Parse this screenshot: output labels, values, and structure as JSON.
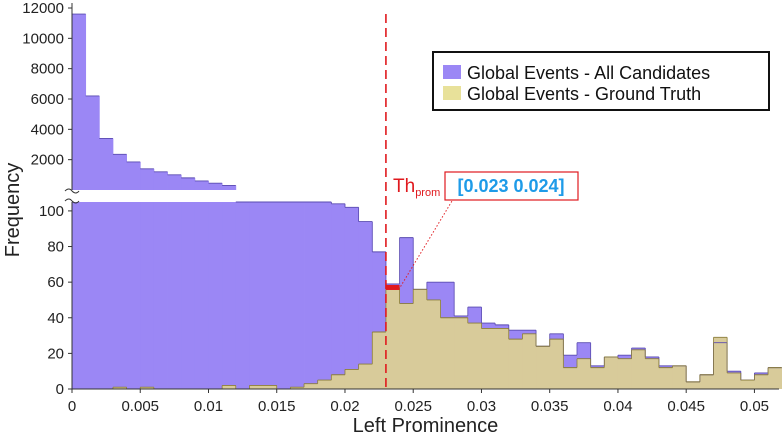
{
  "chart_data": {
    "type": "bar",
    "xlabel": "Left Prominence",
    "ylabel": "Frequency",
    "xlim": [
      0,
      0.0518
    ],
    "bin_width": 0.001,
    "axis_break": true,
    "ylim_lower": [
      0,
      105
    ],
    "ylim_upper": [
      0,
      12000
    ],
    "x_ticks": [
      "0",
      "0.005",
      "0.01",
      "0.015",
      "0.02",
      "0.025",
      "0.03",
      "0.035",
      "0.04",
      "0.045",
      "0.05"
    ],
    "x_tick_values": [
      0,
      0.005,
      0.01,
      0.015,
      0.02,
      0.025,
      0.03,
      0.035,
      0.04,
      0.045,
      0.05
    ],
    "y_ticks_lower": [
      "0",
      "20",
      "40",
      "60",
      "80",
      "100"
    ],
    "y_tick_values_lower": [
      0,
      20,
      40,
      60,
      80,
      100
    ],
    "y_ticks_upper": [
      "2000",
      "4000",
      "6000",
      "8000",
      "10000",
      "12000"
    ],
    "y_tick_values_upper": [
      2000,
      4000,
      6000,
      8000,
      10000,
      12000
    ],
    "series": [
      {
        "name": "Global Events - All Candidates",
        "color": "#9b87f5",
        "values": [
          11600,
          6200,
          3400,
          2350,
          1850,
          1400,
          1200,
          1000,
          800,
          600,
          450,
          300,
          105,
          105,
          105,
          105,
          105,
          105,
          105,
          104,
          102,
          94,
          77,
          59,
          85,
          56,
          60,
          60,
          41,
          46,
          37,
          36,
          33,
          33,
          24,
          31,
          19,
          26,
          13,
          18,
          19,
          23,
          18,
          13,
          13,
          4,
          8,
          26,
          10,
          5,
          9,
          12
        ]
      },
      {
        "name": "Global Events - Ground Truth",
        "color": "#d8cb9a",
        "values": [
          0,
          0,
          0,
          1,
          0,
          1,
          0,
          0,
          0,
          0,
          0,
          2,
          0,
          2,
          2,
          0,
          1,
          3,
          5,
          8,
          11,
          14,
          32,
          57,
          48,
          56,
          50,
          40,
          40,
          37,
          34,
          34,
          28,
          31,
          24,
          28,
          12,
          17,
          12,
          18,
          17,
          22,
          17,
          12,
          13,
          4,
          8,
          29,
          9,
          5,
          8,
          12
        ]
      }
    ],
    "legend_position": "top-right",
    "threshold": {
      "x": 0.023,
      "label_main": "Th",
      "label_sub": "prom",
      "range_label": "[0.023 0.024]",
      "color": "#e0191e"
    }
  }
}
